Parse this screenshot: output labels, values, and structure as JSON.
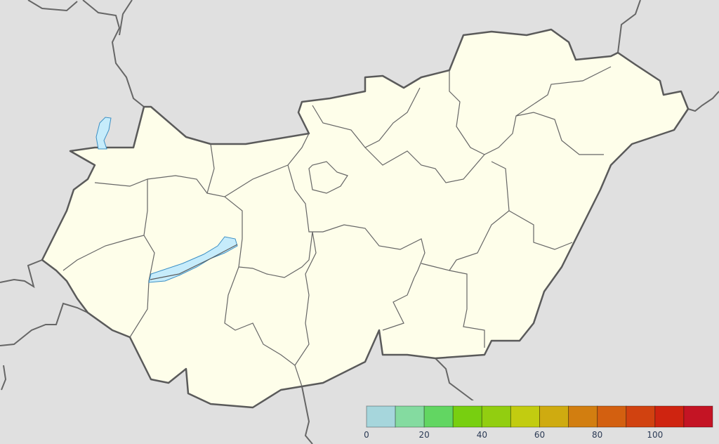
{
  "map": {
    "land_color": "#fefeea",
    "background_color": "#e0e0e0",
    "water_color": "#c6ecfb"
  },
  "legend": {
    "min": 0,
    "max": 120,
    "bins": [
      {
        "from": 0,
        "to": 10,
        "color": "#a6d6dc"
      },
      {
        "from": 10,
        "to": 20,
        "color": "#84dba0"
      },
      {
        "from": 20,
        "to": 30,
        "color": "#62d662"
      },
      {
        "from": 30,
        "to": 40,
        "color": "#78cf10"
      },
      {
        "from": 40,
        "to": 50,
        "color": "#92ce10"
      },
      {
        "from": 50,
        "to": 60,
        "color": "#c2cc10"
      },
      {
        "from": 60,
        "to": 70,
        "color": "#cfab10"
      },
      {
        "from": 70,
        "to": 80,
        "color": "#d27e10"
      },
      {
        "from": 80,
        "to": 90,
        "color": "#d36010"
      },
      {
        "from": 90,
        "to": 100,
        "color": "#d14210"
      },
      {
        "from": 100,
        "to": 110,
        "color": "#cf2410"
      },
      {
        "from": 110,
        "to": 120,
        "color": "#c41424"
      }
    ],
    "ticks": [
      "0",
      "20",
      "40",
      "60",
      "80",
      "100"
    ]
  }
}
